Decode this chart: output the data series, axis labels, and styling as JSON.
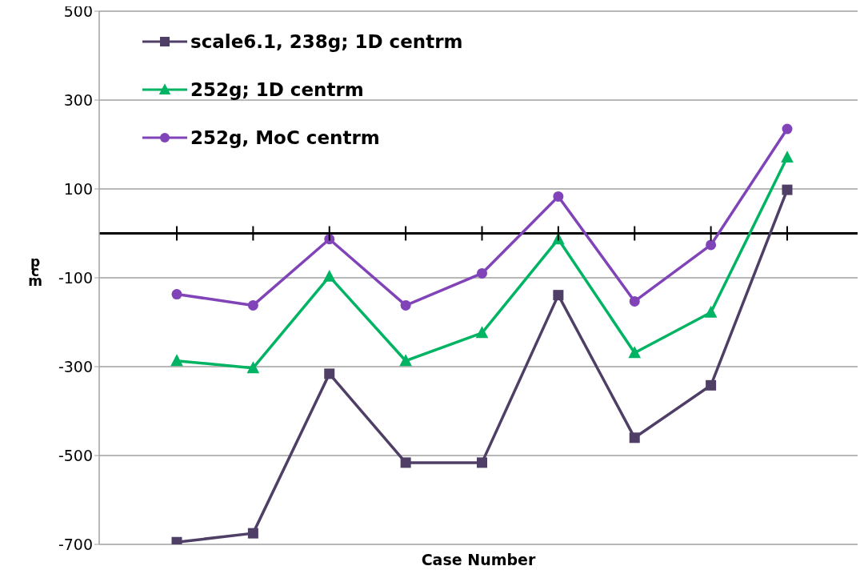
{
  "chart_data": {
    "type": "line",
    "xlabel": "Case Number",
    "ylabel": "pcm",
    "categories": [
      null,
      null,
      null,
      null,
      null,
      null,
      null,
      null,
      null
    ],
    "series": [
      {
        "name": "scale6.1, 238g; 1D centrm",
        "color": "#4f3f66",
        "marker": "square",
        "values": [
          -695,
          -675,
          -316,
          -516,
          -516,
          -139,
          -460,
          -342,
          98
        ]
      },
      {
        "name": "252g; 1D centrm",
        "color": "#00b464",
        "marker": "triangle",
        "values": [
          -287,
          -303,
          -97,
          -287,
          -224,
          -13,
          -269,
          -178,
          171
        ]
      },
      {
        "name": "252g, MoC centrm",
        "color": "#8044b8",
        "marker": "circle",
        "values": [
          -137,
          -162,
          -13,
          -162,
          -90,
          83,
          -153,
          -26,
          235
        ]
      }
    ],
    "ylim": [
      -700,
      500
    ],
    "yticks": [
      -700,
      -500,
      -300,
      -100,
      100,
      300,
      500
    ],
    "grid": "y",
    "legend": "top left",
    "tick_labels": "y",
    "line_style": "solid"
  }
}
